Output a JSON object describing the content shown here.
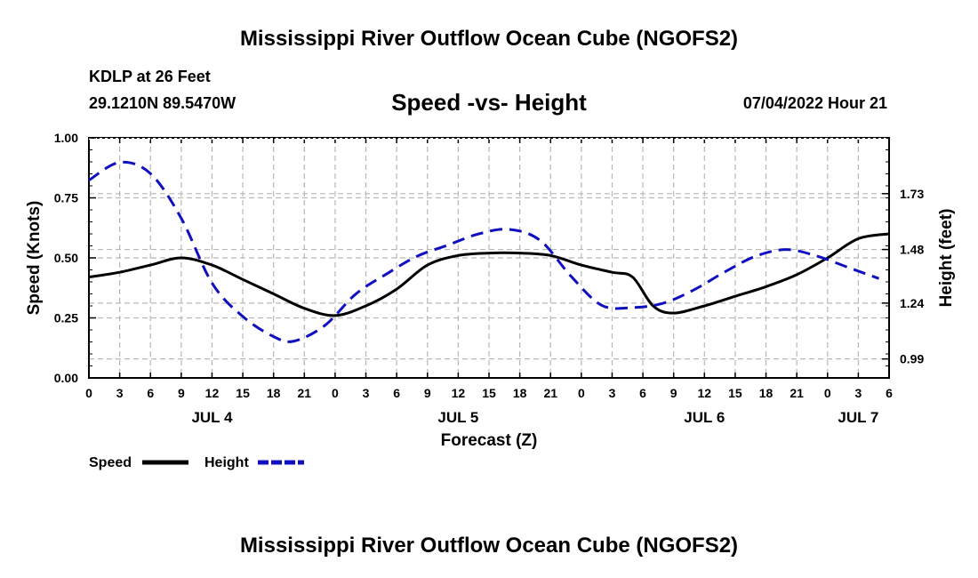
{
  "titles": {
    "main": "Mississippi River Outflow Ocean Cube (NGOFS2)",
    "repeat": "Mississippi River Outflow Ocean Cube (NGOFS2)"
  },
  "header": {
    "station": "KDLP at 26 Feet",
    "coords": "29.1210N  89.5470W",
    "subtitle": "Speed -vs- Height",
    "datetime": "07/04/2022 Hour 21"
  },
  "chart_data": {
    "type": "line",
    "title": "Speed -vs- Height",
    "xlabel": "Forecast (Z)",
    "ylabel": "Speed (Knots)",
    "y2label": "Height (feet)",
    "x_range_hours": [
      0,
      78
    ],
    "x_ticks": [
      "0",
      "3",
      "6",
      "9",
      "12",
      "15",
      "18",
      "21",
      "0",
      "3",
      "6",
      "9",
      "12",
      "15",
      "18",
      "21",
      "0",
      "3",
      "6",
      "9",
      "12",
      "15",
      "18",
      "21",
      "0",
      "3",
      "6"
    ],
    "date_labels": [
      {
        "label": "JUL 4",
        "hour": 12
      },
      {
        "label": "JUL 5",
        "hour": 36
      },
      {
        "label": "JUL 6",
        "hour": 60
      },
      {
        "label": "JUL 7",
        "hour": 75
      }
    ],
    "y_left": {
      "range": [
        0,
        1.0
      ],
      "ticks": [
        "0.00",
        "0.25",
        "0.50",
        "0.75",
        "1.00"
      ]
    },
    "y_right": {
      "range": [
        0.905,
        1.98
      ],
      "ticks": [
        "0.99",
        "1.24",
        "1.48",
        "1.73"
      ]
    },
    "grid": true,
    "legend": [
      {
        "name": "Speed",
        "color": "#000000",
        "dash": "solid"
      },
      {
        "name": "Height",
        "color": "#1010c0",
        "dash": "dashed"
      }
    ],
    "series": [
      {
        "name": "Speed",
        "axis": "left",
        "color": "#000000",
        "x": [
          0,
          3,
          6,
          9,
          12,
          15,
          18,
          21,
          24,
          27,
          30,
          33,
          36,
          39,
          42,
          45,
          48,
          51,
          53,
          55,
          57,
          60,
          63,
          66,
          69,
          72,
          75,
          78
        ],
        "values": [
          0.42,
          0.44,
          0.47,
          0.5,
          0.47,
          0.41,
          0.35,
          0.29,
          0.26,
          0.3,
          0.37,
          0.47,
          0.51,
          0.52,
          0.52,
          0.51,
          0.47,
          0.44,
          0.42,
          0.3,
          0.27,
          0.3,
          0.34,
          0.38,
          0.43,
          0.5,
          0.58,
          0.6
        ]
      },
      {
        "name": "Height",
        "axis": "right",
        "color": "#1010c0",
        "x": [
          0,
          3,
          6,
          9,
          12,
          15,
          18,
          20,
          23,
          26,
          29,
          32,
          35,
          38,
          41,
          44,
          47,
          50,
          53,
          56,
          59,
          62,
          65,
          68,
          71,
          74,
          77
        ],
        "values": [
          1.79,
          1.87,
          1.82,
          1.62,
          1.33,
          1.18,
          1.09,
          1.07,
          1.14,
          1.28,
          1.37,
          1.45,
          1.5,
          1.55,
          1.57,
          1.52,
          1.36,
          1.23,
          1.22,
          1.24,
          1.3,
          1.38,
          1.45,
          1.48,
          1.45,
          1.4,
          1.35
        ]
      }
    ]
  }
}
